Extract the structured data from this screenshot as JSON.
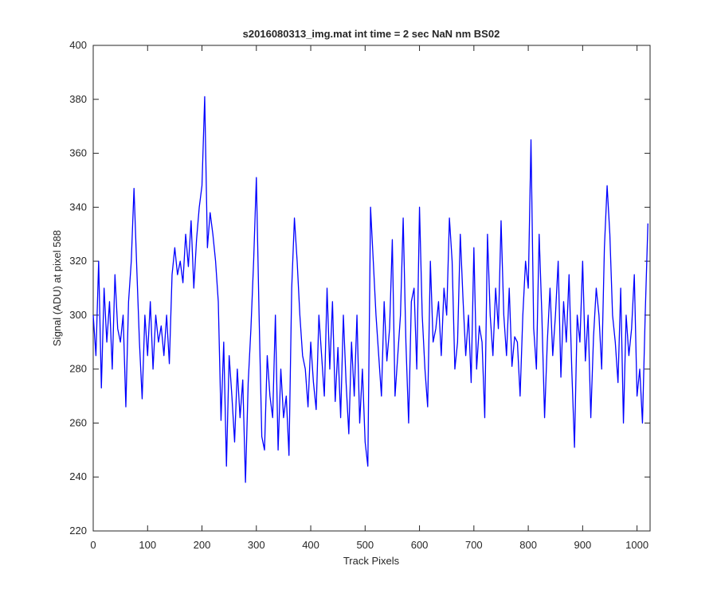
{
  "chart_data": {
    "type": "line",
    "title": "s2016080313_img.mat int time = 2 sec  NaN nm BS02",
    "xlabel": "Track Pixels",
    "ylabel": "Signal (ADU) at pixel 588",
    "x": [
      0,
      5,
      10,
      15,
      20,
      25,
      30,
      35,
      40,
      45,
      50,
      55,
      60,
      65,
      70,
      75,
      80,
      85,
      90,
      95,
      100,
      105,
      110,
      115,
      120,
      125,
      130,
      135,
      140,
      145,
      150,
      155,
      160,
      165,
      170,
      175,
      180,
      185,
      190,
      195,
      200,
      205,
      210,
      215,
      220,
      225,
      230,
      235,
      240,
      245,
      250,
      255,
      260,
      265,
      270,
      275,
      280,
      285,
      290,
      295,
      300,
      305,
      310,
      315,
      320,
      325,
      330,
      335,
      340,
      345,
      350,
      355,
      360,
      365,
      370,
      375,
      380,
      385,
      390,
      395,
      400,
      405,
      410,
      415,
      420,
      425,
      430,
      435,
      440,
      445,
      450,
      455,
      460,
      465,
      470,
      475,
      480,
      485,
      490,
      495,
      500,
      505,
      510,
      515,
      520,
      525,
      530,
      535,
      540,
      545,
      550,
      555,
      560,
      565,
      570,
      575,
      580,
      585,
      590,
      595,
      600,
      605,
      610,
      615,
      620,
      625,
      630,
      635,
      640,
      645,
      650,
      655,
      660,
      665,
      670,
      675,
      680,
      685,
      690,
      695,
      700,
      705,
      710,
      715,
      720,
      725,
      730,
      735,
      740,
      745,
      750,
      755,
      760,
      765,
      770,
      775,
      780,
      785,
      790,
      795,
      800,
      805,
      810,
      815,
      820,
      825,
      830,
      835,
      840,
      845,
      850,
      855,
      860,
      865,
      870,
      875,
      880,
      885,
      890,
      895,
      900,
      905,
      910,
      915,
      920,
      925,
      930,
      935,
      940,
      945,
      950,
      955,
      960,
      965,
      970,
      975,
      980,
      985,
      990,
      995,
      1000,
      1005,
      1010,
      1015,
      1020
    ],
    "series": [
      {
        "name": "signal",
        "color": "#0000ff",
        "values": [
          300,
          285,
          320,
          273,
          310,
          290,
          305,
          280,
          315,
          295,
          290,
          300,
          266,
          305,
          320,
          347,
          318,
          290,
          269,
          300,
          285,
          305,
          280,
          300,
          290,
          296,
          285,
          300,
          282,
          315,
          325,
          315,
          320,
          312,
          330,
          318,
          335,
          310,
          328,
          340,
          348,
          381,
          325,
          338,
          330,
          320,
          305,
          261,
          290,
          244,
          285,
          270,
          253,
          280,
          262,
          276,
          238,
          275,
          295,
          320,
          351,
          300,
          255,
          250,
          285,
          270,
          262,
          300,
          250,
          280,
          262,
          270,
          248,
          310,
          336,
          320,
          300,
          285,
          280,
          266,
          290,
          275,
          265,
          300,
          285,
          270,
          310,
          280,
          305,
          268,
          288,
          262,
          300,
          275,
          256,
          290,
          270,
          300,
          260,
          280,
          253,
          244,
          340,
          320,
          300,
          285,
          270,
          305,
          283,
          295,
          328,
          270,
          285,
          300,
          336,
          290,
          260,
          305,
          310,
          280,
          340,
          300,
          280,
          266,
          320,
          290,
          295,
          305,
          285,
          310,
          300,
          336,
          320,
          280,
          290,
          330,
          306,
          285,
          300,
          275,
          325,
          280,
          296,
          290,
          262,
          330,
          300,
          285,
          310,
          295,
          335,
          300,
          285,
          310,
          281,
          292,
          290,
          270,
          300,
          320,
          310,
          365,
          295,
          280,
          330,
          300,
          262,
          290,
          310,
          285,
          300,
          320,
          277,
          305,
          290,
          315,
          280,
          251,
          300,
          290,
          320,
          283,
          300,
          262,
          292,
          310,
          300,
          280,
          325,
          348,
          330,
          300,
          290,
          275,
          310,
          260,
          300,
          285,
          295,
          315,
          270,
          280,
          260,
          300,
          334
        ]
      }
    ],
    "xlim": [
      0,
      1024
    ],
    "ylim": [
      220,
      400
    ],
    "xticks": [
      0,
      100,
      200,
      300,
      400,
      500,
      600,
      700,
      800,
      900,
      1000
    ],
    "yticks": [
      220,
      240,
      260,
      280,
      300,
      320,
      340,
      360,
      380,
      400
    ]
  }
}
